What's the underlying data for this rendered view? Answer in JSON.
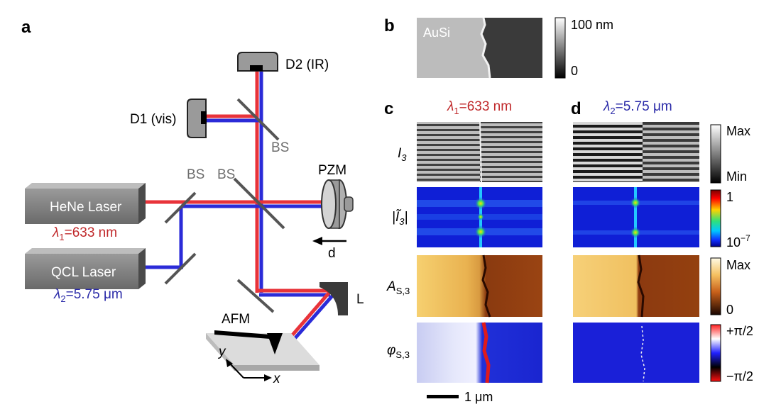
{
  "panels": {
    "a": "a",
    "b": "b",
    "c": "c",
    "d": "d"
  },
  "setup": {
    "d2_label": "D2 (IR)",
    "d1_label": "D1 (vis)",
    "bs_labels": [
      "BS",
      "BS",
      "BS"
    ],
    "pzm_label": "PZM",
    "d_label": "d",
    "hene_label": "HeNe Laser",
    "hene_lambda": "=633 nm",
    "hene_lambda_sym": "λ",
    "hene_lambda_sub": "1",
    "qcl_label": "QCL Laser",
    "qcl_lambda": "=5.75 μm",
    "qcl_lambda_sym": "λ",
    "qcl_lambda_sub": "2",
    "lens_label": "L",
    "afm_label": "AFM",
    "axis_x": "x",
    "axis_y": "y"
  },
  "topography": {
    "sample_label": "AuSi",
    "colorbar_max": "100 nm",
    "colorbar_min": "0"
  },
  "column_c": {
    "lambda_sym": "λ",
    "lambda_sub": "1",
    "lambda_text": "=633 nm"
  },
  "column_d": {
    "lambda_sym": "λ",
    "lambda_sub": "2",
    "lambda_text": "=5.75 μm"
  },
  "rows": {
    "r1_main": "I",
    "r1_sub": "3",
    "r2_main": "Ĩ",
    "r2_sub": "3",
    "r3_main": "A",
    "r3_sub": "S,3",
    "r4_main": "φ",
    "r4_sub": "S,3"
  },
  "colorbars": {
    "gray_max": "Max",
    "gray_min": "Min",
    "jet_max": "1",
    "jet_min": "10",
    "jet_min_exp": "−7",
    "amp_max": "Max",
    "amp_min": "0",
    "phase_max": "+π/2",
    "phase_min": "−π/2"
  },
  "scale_bar": "1 μm",
  "colors": {
    "red_beam": "#e8333a",
    "blue_beam": "#2b2bd8",
    "red_text": "#c0292b",
    "blue_text": "#2a2aa8"
  }
}
